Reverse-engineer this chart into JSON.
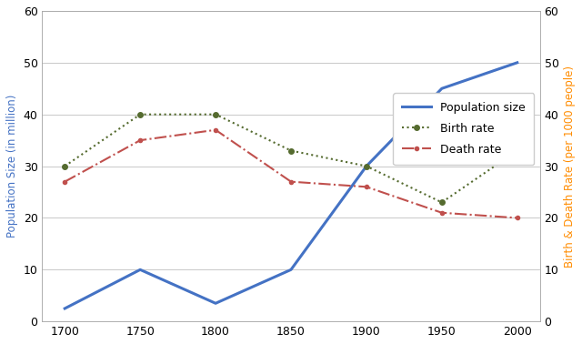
{
  "years": [
    1700,
    1750,
    1800,
    1850,
    1900,
    1950,
    2000
  ],
  "population_size": [
    2.5,
    10,
    3.5,
    10,
    30,
    45,
    50
  ],
  "birth_rate": [
    30,
    40,
    40,
    33,
    30,
    23,
    33
  ],
  "death_rate": [
    27,
    35,
    37,
    27,
    26,
    21,
    20
  ],
  "pop_color": "#4472C4",
  "birth_color": "#556B2F",
  "death_color": "#C0504D",
  "ylabel_left": "Population Size (in million)",
  "ylabel_right": "Birth & Death Rate (per 1000 people)",
  "ylim_left": [
    0,
    60
  ],
  "ylim_right": [
    0,
    60
  ],
  "yticks": [
    0,
    10,
    20,
    30,
    40,
    50,
    60
  ],
  "legend_labels": [
    "Population size",
    "Birth rate",
    "Death rate"
  ],
  "bg_color": "#FFFFFF",
  "plot_bg_color": "#FFFFFF",
  "grid_color": "#C8C8C8"
}
